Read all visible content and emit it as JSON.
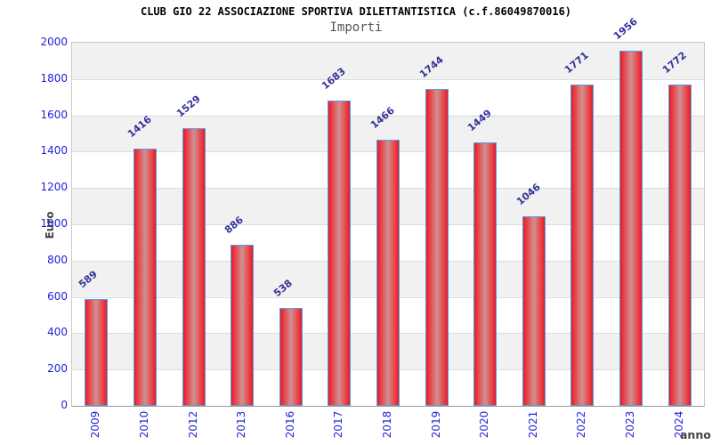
{
  "header": {
    "title": "CLUB GIO 22 ASSOCIAZIONE SPORTIVA DILETTANTISTICA (c.f.86049870016)",
    "subtitle": "Importi"
  },
  "chart_data": {
    "type": "bar",
    "title": "CLUB GIO 22 ASSOCIAZIONE SPORTIVA DILETTANTISTICA (c.f.86049870016)",
    "subtitle": "Importi",
    "categories": [
      "2009",
      "2010",
      "2012",
      "2013",
      "2016",
      "2017",
      "2018",
      "2019",
      "2020",
      "2021",
      "2022",
      "2023",
      "2024"
    ],
    "values": [
      589,
      1416,
      1529,
      886,
      538,
      1683,
      1466,
      1744,
      1449,
      1046,
      1771,
      1956,
      1772
    ],
    "xlabel": "anno",
    "ylabel": "Euro",
    "ylim": [
      0,
      2000
    ],
    "ytick_step": 200,
    "yticks": [
      0,
      200,
      400,
      600,
      800,
      1000,
      1200,
      1400,
      1600,
      1800,
      2000
    ],
    "grid": true,
    "legend": false,
    "value_labels_rotated": true,
    "band_fill_alternating": true,
    "colors": {
      "bar_edge": "#d8202a",
      "bar_bright": "#ee3238",
      "bar_mid": "#cf9192",
      "bar_border": "#55a0e6",
      "tick_label": "#2323d6",
      "value_label": "#333399",
      "axis_name": "#444444",
      "band": "#f1f1f1",
      "grid_line": "#dcdcdc",
      "plot_border": "#c9c9c9",
      "title_color": "#000000",
      "subtitle_color": "#555555"
    }
  }
}
